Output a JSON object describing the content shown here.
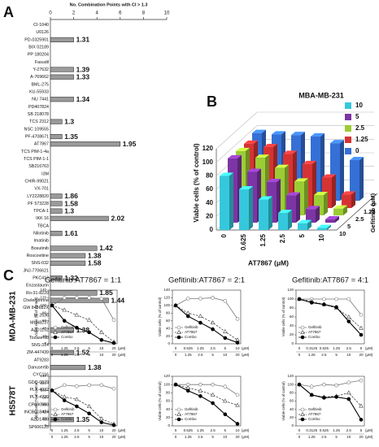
{
  "panels": [
    "A",
    "B",
    "C"
  ],
  "row_labels": [
    "MDA-MB-231",
    "HS578T"
  ],
  "chart_data": [
    {
      "type": "hbar",
      "xlabel": "No. Combination Points with CI > 1.3",
      "categories": [
        "CI-1040",
        "U0126",
        "PD-0325901",
        "BIX 02189",
        "PP 180204",
        "Fasudil",
        "Y-27632",
        "A-769662",
        "BML-275",
        "KU-55933",
        "NU 7441",
        "PD407824",
        "SB 218078",
        "TCS 2312",
        "NSC 109555",
        "PF-4708671",
        "AT7867",
        "TCS PIM-1-4a",
        "TCS PIM-1-1",
        "SB216763",
        "I3M",
        "CHIR-99021",
        "VX-701",
        "LY2228820",
        "PF 573228",
        "TPCA-1",
        "IKK 16",
        "TBCA",
        "Nilotinib",
        "Imatinib",
        "Bosutinib",
        "Roscovitine",
        "SNS-032",
        "JNJ-7706621",
        "PKC412",
        "Enzastaurin",
        "Ro-31-8220",
        "Chelerythrine",
        "GW 843682X",
        "BI 2536",
        "MLN8237",
        "AZD1152",
        "Tozasertib",
        "SNS-314",
        "ZM-447439",
        "AT9283",
        "Danusertib",
        "CYC116",
        "GDC-0879",
        "PLX-4032",
        "PLX-4720",
        "CP690550",
        "INCB018424",
        "AZD1480",
        "SP600125"
      ],
      "values": [
        0,
        0,
        2,
        0,
        0,
        0,
        2,
        2,
        0,
        0,
        2,
        0,
        0,
        1,
        0,
        1,
        6,
        0,
        0,
        0,
        0,
        0,
        0,
        1,
        1,
        1,
        5,
        0,
        1,
        0,
        4,
        3,
        3,
        0,
        1,
        0,
        4,
        5,
        0,
        0,
        0,
        2,
        0,
        0,
        2,
        0,
        3,
        0,
        0,
        0,
        0,
        0,
        0,
        2,
        0
      ],
      "ci_labels": [
        null,
        null,
        1.31,
        null,
        null,
        null,
        1.39,
        1.33,
        null,
        null,
        1.34,
        null,
        null,
        1.3,
        null,
        1.35,
        1.95,
        null,
        null,
        null,
        null,
        null,
        null,
        1.86,
        1.58,
        1.3,
        2.02,
        null,
        1.61,
        null,
        1.42,
        1.38,
        1.58,
        null,
        1.32,
        null,
        1.85,
        1.44,
        null,
        null,
        null,
        1.38,
        null,
        null,
        1.52,
        null,
        1.38,
        null,
        null,
        null,
        null,
        null,
        null,
        1.35,
        null
      ],
      "color": "#9a9a9a",
      "xlim": [
        0,
        10
      ],
      "xticks": [
        0,
        2,
        4,
        6,
        8,
        10
      ]
    },
    {
      "type": "bar3d",
      "title": "MBA-MB-231",
      "xlabel": "AT7867 (μM)",
      "ylabel": "Viable cells (% of control)",
      "zlabel": "Gefitinib (μM)",
      "categories": [
        "0",
        "0.625",
        "1.25",
        "2.5",
        "5",
        "10"
      ],
      "series": [
        {
          "name": "10",
          "color": "#35c8dc",
          "values": [
            80,
            60,
            45,
            25,
            10,
            3
          ]
        },
        {
          "name": "5",
          "color": "#7d34a4",
          "values": [
            95,
            75,
            60,
            40,
            20,
            5
          ]
        },
        {
          "name": "2.5",
          "color": "#9ccc34",
          "values": [
            95,
            85,
            70,
            50,
            30,
            10
          ]
        },
        {
          "name": "1.25",
          "color": "#d63333",
          "values": [
            95,
            90,
            80,
            65,
            45,
            20
          ]
        },
        {
          "name": "0",
          "color": "#3570d6",
          "values": [
            100,
            98,
            97,
            95,
            85,
            60
          ]
        }
      ],
      "ylim": [
        0,
        120
      ],
      "yticks": [
        0,
        20,
        40,
        60,
        80,
        100,
        120
      ]
    },
    {
      "type": "line",
      "title": "Gefitinib:AT7867 = 1:1",
      "ylabel": "Viable cells (% of control)",
      "x_unit": "(μM)",
      "categories": [
        "0",
        "1.25",
        "2.5",
        "5",
        "10",
        "20"
      ],
      "categories2": [
        "0",
        "1.25",
        "2.5",
        "5",
        "10",
        "20"
      ],
      "series": [
        {
          "name": "Gefitinib",
          "color": "#777777",
          "marker": "open-circle",
          "dashed": false,
          "values": [
            100,
            120,
            120,
            120,
            118,
            62
          ]
        },
        {
          "name": "AT7867",
          "color": "#444444",
          "marker": "open-triangle",
          "dashed": true,
          "values": [
            100,
            88,
            75,
            62,
            30,
            5
          ]
        },
        {
          "name": "Combo",
          "color": "#000000",
          "marker": "filled-circle",
          "dashed": false,
          "values": [
            100,
            60,
            42,
            30,
            10,
            2
          ]
        }
      ],
      "ylim": [
        0,
        140
      ],
      "yticks": [
        0,
        20,
        40,
        60,
        80,
        100,
        120,
        140
      ]
    },
    {
      "type": "line",
      "title": "Gefitinib:AT7867 = 2:1",
      "ylabel": "Viable cells (% of control)",
      "x_unit": "(μM)",
      "categories": [
        "0",
        "0.625",
        "1.25",
        "2.5",
        "5",
        "10"
      ],
      "categories2": [
        "0",
        "1.25",
        "2.5",
        "5",
        "10",
        "20"
      ],
      "series": [
        {
          "name": "Gefitinib",
          "color": "#777777",
          "marker": "open-circle",
          "dashed": false,
          "values": [
            100,
            118,
            118,
            120,
            112,
            65
          ]
        },
        {
          "name": "AT7867",
          "color": "#444444",
          "marker": "open-triangle",
          "dashed": true,
          "values": [
            100,
            80,
            72,
            55,
            32,
            10
          ]
        },
        {
          "name": "Combo",
          "color": "#000000",
          "marker": "filled-circle",
          "dashed": false,
          "values": [
            100,
            72,
            55,
            38,
            15,
            3
          ]
        }
      ],
      "ylim": [
        0,
        140
      ],
      "yticks": [
        0,
        20,
        40,
        60,
        80,
        100,
        120,
        140
      ]
    },
    {
      "type": "line",
      "title": "Gefitinib:AT7867 = 4:1",
      "ylabel": "Viable cells (% of control)",
      "x_unit": "(μM)",
      "categories": [
        "0",
        "0.3125",
        "0.625",
        "1.25",
        "2.5",
        "5"
      ],
      "categories2": [
        "0",
        "1.25",
        "2.5",
        "5",
        "10",
        "20"
      ],
      "series": [
        {
          "name": "Gefitinib",
          "color": "#777777",
          "marker": "open-circle",
          "dashed": false,
          "values": [
            100,
            100,
            100,
            100,
            100,
            65
          ]
        },
        {
          "name": "AT7867",
          "color": "#444444",
          "marker": "open-triangle",
          "dashed": true,
          "values": [
            100,
            95,
            88,
            80,
            60,
            35
          ]
        },
        {
          "name": "Combo",
          "color": "#000000",
          "marker": "filled-circle",
          "dashed": false,
          "values": [
            100,
            92,
            88,
            82,
            50,
            20
          ]
        }
      ],
      "ylim": [
        0,
        120
      ],
      "yticks": [
        0,
        20,
        40,
        60,
        80,
        100,
        120
      ]
    },
    {
      "type": "line",
      "ylabel": "Viable cells (% of control)",
      "x_unit": "(μM)",
      "categories": [
        "0",
        "1.25",
        "2.5",
        "5",
        "10",
        "20"
      ],
      "categories2": [
        "0",
        "1.25",
        "2.5",
        "5",
        "10",
        "20"
      ],
      "series": [
        {
          "name": "Gefitinib",
          "color": "#777777",
          "marker": "open-circle",
          "dashed": false,
          "values": [
            100,
            115,
            112,
            115,
            115,
            105
          ]
        },
        {
          "name": "AT7867",
          "color": "#444444",
          "marker": "open-triangle",
          "dashed": true,
          "values": [
            100,
            82,
            75,
            55,
            20,
            5
          ]
        },
        {
          "name": "Combo",
          "color": "#000000",
          "marker": "filled-circle",
          "dashed": false,
          "values": [
            100,
            72,
            55,
            35,
            10,
            2
          ]
        }
      ],
      "ylim": [
        0,
        140
      ],
      "yticks": [
        0,
        20,
        40,
        60,
        80,
        100,
        120,
        140
      ]
    },
    {
      "type": "line",
      "ylabel": "Viable cells (% of control)",
      "x_unit": "(μM)",
      "categories": [
        "0",
        "0.625",
        "1.25",
        "2.5",
        "5",
        "10"
      ],
      "categories2": [
        "0",
        "1.25",
        "2.5",
        "5",
        "10",
        "20"
      ],
      "series": [
        {
          "name": "Gefitinib",
          "color": "#777777",
          "marker": "open-circle",
          "dashed": false,
          "values": [
            100,
            100,
            100,
            100,
            95,
            75
          ]
        },
        {
          "name": "AT7867",
          "color": "#444444",
          "marker": "open-triangle",
          "dashed": true,
          "values": [
            100,
            92,
            85,
            75,
            60,
            50
          ]
        },
        {
          "name": "Combo",
          "color": "#000000",
          "marker": "filled-circle",
          "dashed": false,
          "values": [
            100,
            85,
            72,
            55,
            28,
            5
          ]
        }
      ],
      "ylim": [
        0,
        120
      ],
      "yticks": [
        0,
        20,
        40,
        60,
        80,
        100,
        120
      ]
    },
    {
      "type": "line",
      "ylabel": "Viable cells (% of control)",
      "x_unit": "(μM)",
      "categories": [
        "0",
        "0.3125",
        "0.625",
        "1.25",
        "2.5",
        "5"
      ],
      "categories2": [
        "0",
        "1.25",
        "2.5",
        "5",
        "10",
        "20"
      ],
      "series": [
        {
          "name": "Gefitinib",
          "color": "#777777",
          "marker": "open-circle",
          "dashed": false,
          "values": [
            100,
            95,
            100,
            98,
            105,
            110
          ]
        },
        {
          "name": "AT7867",
          "color": "#444444",
          "marker": "open-triangle",
          "dashed": true,
          "values": [
            100,
            75,
            70,
            72,
            80,
            48
          ]
        },
        {
          "name": "Combo",
          "color": "#000000",
          "marker": "filled-circle",
          "dashed": false,
          "values": [
            100,
            75,
            68,
            70,
            65,
            15
          ]
        }
      ],
      "ylim": [
        0,
        120
      ],
      "yticks": [
        0,
        20,
        40,
        60,
        80,
        100,
        120
      ]
    }
  ]
}
